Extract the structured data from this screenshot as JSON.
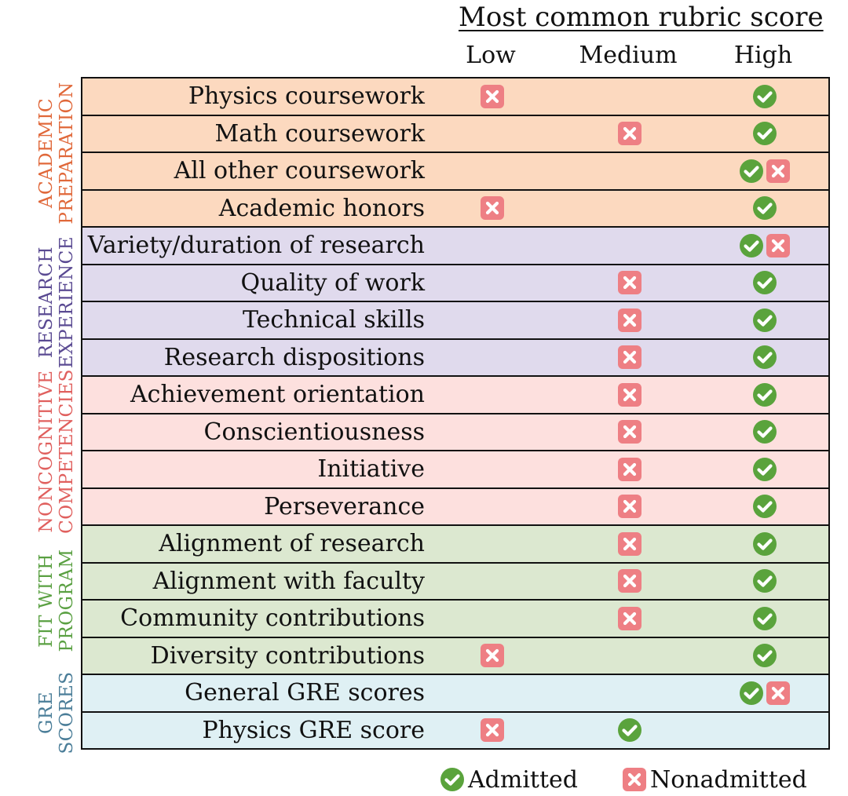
{
  "title": "Most common rubric score",
  "columns": [
    "Low",
    "Medium",
    "High"
  ],
  "colors": {
    "academic_bg": "#fcd9bf",
    "academic_text": "#e0683a",
    "research_bg": "#e0daed",
    "research_text": "#5a4a92",
    "noncog_bg": "#fde0de",
    "noncog_text": "#e0605e",
    "fit_bg": "#dce8d0",
    "fit_text": "#5aa042",
    "gre_bg": "#dff0f4",
    "gre_text": "#4a7d98",
    "check": "#5aa33c",
    "cross": "#ee7f84"
  },
  "sections": [
    {
      "label_line1": "ACADEMIC",
      "label_line2": "PREPARATION",
      "color_key": "academic",
      "start": 0,
      "count": 4
    },
    {
      "label_line1": "RESEARCH",
      "label_line2": "EXPERIENCE",
      "color_key": "research",
      "start": 4,
      "count": 4
    },
    {
      "label_line1": "NONCOGNITIVE",
      "label_line2": "COMPETENCIES",
      "color_key": "noncog",
      "start": 8,
      "count": 4
    },
    {
      "label_line1": "FIT WITH",
      "label_line2": "PROGRAM",
      "color_key": "fit",
      "start": 12,
      "count": 4
    },
    {
      "label_line1": "GRE",
      "label_line2": "SCORES",
      "color_key": "gre",
      "start": 16,
      "count": 2
    }
  ],
  "rows": [
    {
      "label": "Physics coursework",
      "admitted": "High",
      "nonadmitted": "Low"
    },
    {
      "label": "Math coursework",
      "admitted": "High",
      "nonadmitted": "Medium"
    },
    {
      "label": "All other coursework",
      "admitted": "High",
      "nonadmitted": "High"
    },
    {
      "label": "Academic honors",
      "admitted": "High",
      "nonadmitted": "Low"
    },
    {
      "label": "Variety/duration of research",
      "admitted": "High",
      "nonadmitted": "High"
    },
    {
      "label": "Quality of work",
      "admitted": "High",
      "nonadmitted": "Medium"
    },
    {
      "label": "Technical skills",
      "admitted": "High",
      "nonadmitted": "Medium"
    },
    {
      "label": "Research dispositions",
      "admitted": "High",
      "nonadmitted": "Medium"
    },
    {
      "label": "Achievement orientation",
      "admitted": "High",
      "nonadmitted": "Medium"
    },
    {
      "label": "Conscientiousness",
      "admitted": "High",
      "nonadmitted": "Medium"
    },
    {
      "label": "Initiative",
      "admitted": "High",
      "nonadmitted": "Medium"
    },
    {
      "label": "Perseverance",
      "admitted": "High",
      "nonadmitted": "Medium"
    },
    {
      "label": "Alignment of research",
      "admitted": "High",
      "nonadmitted": "Medium"
    },
    {
      "label": "Alignment with faculty",
      "admitted": "High",
      "nonadmitted": "Medium"
    },
    {
      "label": "Community contributions",
      "admitted": "High",
      "nonadmitted": "Medium"
    },
    {
      "label": "Diversity contributions",
      "admitted": "High",
      "nonadmitted": "Low"
    },
    {
      "label": "General GRE scores",
      "admitted": "High",
      "nonadmitted": "High"
    },
    {
      "label": "Physics GRE score",
      "admitted": "Medium",
      "nonadmitted": "Low"
    }
  ],
  "legend": {
    "admitted_label": "Admitted",
    "nonadmitted_label": "Nonadmitted",
    "admitted_icon": "check-circle-icon",
    "nonadmitted_icon": "x-square-icon"
  }
}
